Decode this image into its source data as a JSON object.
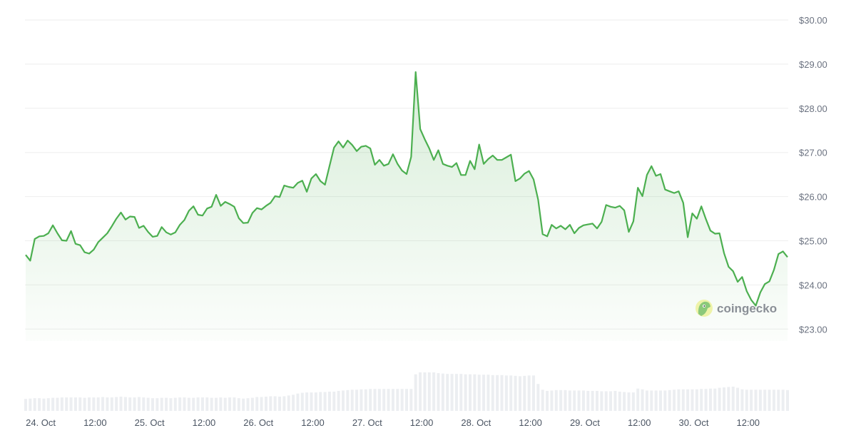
{
  "chart_data": {
    "type": "area",
    "title": "",
    "xlabel": "",
    "ylabel": "",
    "start_time": "23 Oct 21:00",
    "step_hours": 1,
    "ylim": [
      23,
      30
    ],
    "y_ticks": [
      "$23.00",
      "$24.00",
      "$25.00",
      "$26.00",
      "$27.00",
      "$28.00",
      "$29.00",
      "$30.00"
    ],
    "y_tick_values": [
      23,
      24,
      25,
      26,
      27,
      28,
      29,
      30
    ],
    "x_ticks": [
      "24. Oct",
      "12:00",
      "25. Oct",
      "12:00",
      "26. Oct",
      "12:00",
      "27. Oct",
      "12:00",
      "28. Oct",
      "12:00",
      "29. Oct",
      "12:00",
      "30. Oct",
      "12:00"
    ],
    "x_tick_hours_from_24_oct": [
      0,
      12,
      24,
      36,
      48,
      60,
      72,
      84,
      96,
      108,
      120,
      132,
      144,
      156
    ],
    "grid": true,
    "y_axis_position": "right",
    "colors": {
      "line": "#4caf50",
      "fill": "#4caf50",
      "volume": "#eceef1",
      "grid": "#eeeeee"
    },
    "price": [
      24.68,
      24.55,
      25.04,
      25.1,
      25.11,
      25.17,
      25.35,
      25.17,
      25.01,
      25.0,
      25.22,
      24.93,
      24.9,
      24.74,
      24.71,
      24.8,
      24.97,
      25.07,
      25.17,
      25.33,
      25.5,
      25.64,
      25.48,
      25.55,
      25.54,
      25.29,
      25.34,
      25.2,
      25.09,
      25.11,
      25.31,
      25.19,
      25.14,
      25.19,
      25.36,
      25.47,
      25.68,
      25.78,
      25.59,
      25.57,
      25.73,
      25.77,
      26.04,
      25.79,
      25.88,
      25.83,
      25.77,
      25.51,
      25.4,
      25.41,
      25.63,
      25.74,
      25.71,
      25.79,
      25.86,
      26.01,
      25.99,
      26.25,
      26.22,
      26.2,
      26.31,
      26.36,
      26.11,
      26.41,
      26.51,
      26.35,
      26.27,
      26.69,
      27.11,
      27.25,
      27.11,
      27.27,
      27.17,
      27.03,
      27.13,
      27.15,
      27.09,
      26.72,
      26.83,
      26.7,
      26.74,
      26.96,
      26.74,
      26.59,
      26.51,
      26.9,
      28.82,
      27.53,
      27.3,
      27.09,
      26.83,
      27.05,
      26.74,
      26.7,
      26.67,
      26.76,
      26.49,
      26.49,
      26.81,
      26.62,
      27.18,
      26.74,
      26.85,
      26.93,
      26.83,
      26.83,
      26.89,
      26.95,
      26.35,
      26.41,
      26.52,
      26.58,
      26.39,
      25.93,
      25.15,
      25.1,
      25.36,
      25.28,
      25.34,
      25.26,
      25.36,
      25.17,
      25.29,
      25.35,
      25.37,
      25.39,
      25.28,
      25.43,
      25.81,
      25.77,
      25.75,
      25.79,
      25.69,
      25.2,
      25.44,
      26.2,
      26.01,
      26.49,
      26.69,
      26.47,
      26.51,
      26.16,
      26.12,
      26.08,
      26.12,
      25.86,
      25.08,
      25.62,
      25.5,
      25.78,
      25.49,
      25.23,
      25.16,
      25.17,
      24.72,
      24.41,
      24.31,
      24.07,
      24.18,
      23.86,
      23.66,
      23.53,
      23.83,
      24.02,
      24.08,
      24.34,
      24.7,
      24.76,
      24.63
    ],
    "volume_relative": [
      0.31,
      0.32,
      0.33,
      0.33,
      0.32,
      0.33,
      0.34,
      0.34,
      0.35,
      0.35,
      0.35,
      0.35,
      0.35,
      0.34,
      0.35,
      0.35,
      0.35,
      0.36,
      0.35,
      0.35,
      0.36,
      0.37,
      0.36,
      0.35,
      0.35,
      0.36,
      0.35,
      0.34,
      0.33,
      0.33,
      0.34,
      0.34,
      0.33,
      0.34,
      0.35,
      0.35,
      0.34,
      0.34,
      0.35,
      0.35,
      0.35,
      0.34,
      0.34,
      0.35,
      0.34,
      0.35,
      0.35,
      0.33,
      0.32,
      0.33,
      0.34,
      0.36,
      0.36,
      0.37,
      0.38,
      0.38,
      0.37,
      0.38,
      0.4,
      0.42,
      0.45,
      0.47,
      0.48,
      0.48,
      0.48,
      0.49,
      0.49,
      0.5,
      0.5,
      0.52,
      0.53,
      0.54,
      0.55,
      0.55,
      0.56,
      0.56,
      0.57,
      0.57,
      0.57,
      0.57,
      0.57,
      0.57,
      0.57,
      0.57,
      0.57,
      0.57,
      0.95,
      1.0,
      1.0,
      1.0,
      1.0,
      0.98,
      0.97,
      0.96,
      0.96,
      0.96,
      0.96,
      0.95,
      0.95,
      0.95,
      0.94,
      0.94,
      0.94,
      0.93,
      0.93,
      0.93,
      0.92,
      0.92,
      0.91,
      0.9,
      0.91,
      0.92,
      0.92,
      0.7,
      0.55,
      0.52,
      0.53,
      0.54,
      0.54,
      0.54,
      0.53,
      0.53,
      0.53,
      0.53,
      0.52,
      0.52,
      0.52,
      0.51,
      0.51,
      0.51,
      0.52,
      0.5,
      0.49,
      0.48,
      0.48,
      0.58,
      0.56,
      0.53,
      0.53,
      0.53,
      0.53,
      0.53,
      0.54,
      0.55,
      0.56,
      0.56,
      0.56,
      0.56,
      0.56,
      0.57,
      0.57,
      0.58,
      0.58,
      0.6,
      0.61,
      0.62,
      0.63,
      0.6,
      0.56,
      0.55,
      0.55,
      0.55,
      0.55,
      0.55,
      0.55,
      0.55,
      0.55,
      0.55,
      0.54
    ]
  },
  "watermark": {
    "text": "coingecko",
    "icon": "gecko-logo-icon"
  }
}
